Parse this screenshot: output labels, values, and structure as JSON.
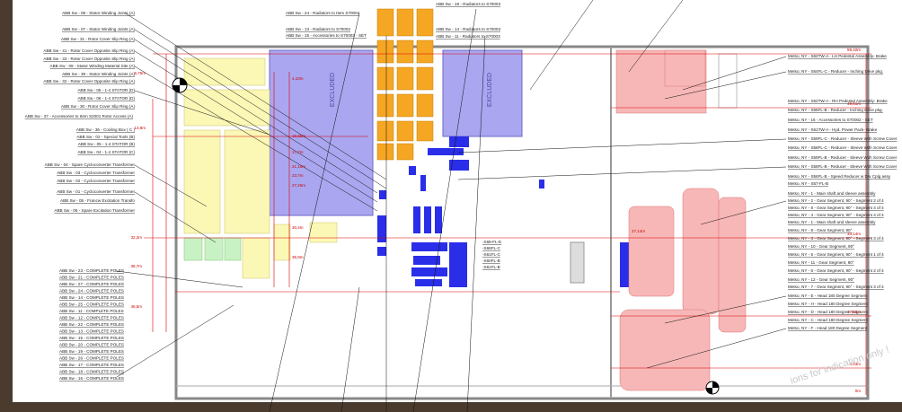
{
  "left_labels": [
    "ABB Sw - 08 - Stator Winding Joints (A)",
    "ABB Sw - 07 - Stator Winding Joints (A)",
    "ABB Sw - 31 - Rotor Cover Slip Ring (A)",
    "ABB Sw - 41 - Rotor Cover Opposite Slip Ring (A)",
    "ABB Sw - 33 - Rotor Cover Opposite Slip Ring (A)",
    "ABB Sw - 09 - Stator Winding Material Site (A)",
    "ABB Sw - 39 - Stator Winding Joints (A)",
    "ABB Sw - 32 - Rotor Cover Opposite Slip Ring (A)",
    "ABB Sw - 05 - 1-4 STATOR (D)",
    "ABB Sw - 06 - 1-4 STATOR (D)",
    "ABB Sw - 30 - Rotor Cover Slip Ring (A)",
    "ABB Sw - 37 - Accessories to Item S2001 Rotor Access (A)",
    "ABB Sw - 36 - Cooling Box ( C )",
    "ABB Sw - 02 - Special Tools (B)",
    "ABB Sw - 05 - 1-4 STATOR (B)",
    "ABB Sw - 04 - 1-4 STATOR (C)",
    "ABB Sw - 04 - Spare Cycloconverter Transformer",
    "ABB Sw - 03 - Cycloconverter Transformer",
    "ABB Sw - 02 - Cycloconverter Transformer",
    "ABB Sw - 01 - Cycloconverter Transformer",
    "ABB Sw - 05 - Francw Excitation Transfo",
    "ABB Sw - 06 - Spare Excitation Transformer"
  ],
  "poles": [
    "ABB Sw - 23 - COMPLETE POLES",
    "ABB Sw - 21 - COMPLETE POLES",
    "ABB Sw - 27 - COMPLETE POLES",
    "ABB Sw - 24 - COMPLETE POLES",
    "ABB Sw - 14 - COMPLETE POLES",
    "ABB Sw - 25 - COMPLETE POLES",
    "ABB Sw - 11 - COMPLETE POLES",
    "ABB Sw - 12 - COMPLETE POLES",
    "ABB Sw - 22 - COMPLETE POLES",
    "ABB Sw - 13 - COMPLETE POLES",
    "ABB Sw - 15 - COMPLETE POLES",
    "ABB Sw - 20 - COMPLETE POLES",
    "ABB Sw - 19 - COMPLETE POLES",
    "ABB Sw - 26 - COMPLETE POLES",
    "ABB Sw - 17 - COMPLETE POLES",
    "ABB Sw - 18 - COMPLETE POLES",
    "ABB Sw - 16 - COMPLETE POLES"
  ],
  "top_labels": [
    "ABB Sw - 24 - Radiators to Item S70004",
    "ABB Sw - 13 - Radiators to S70002",
    "ABB Sw - 15 - Accessories to S70002 - SET",
    "ABB Sw - 19 - Radiators to S70003",
    "ABB Sw - 14 - Radiators to S70003",
    "ABB Sw - 11 - Radiators to S70003"
  ],
  "right_labels": [
    "Metso, NY - S62TW-A - LH Pedestal Assembly- Brake",
    "Metso, NY - S64FL-C - Reducer - Inching Drive pkg.",
    "Metso, NY - S62TW-A - RH Pedestal Assembly- Brake",
    "Metso, NY - S65FL-B - Reducer - Inching Drive pkg.",
    "Metso, NY - 16 - Accessories to ST0002 - SET",
    "Metso, NY - S61TW-A - Hyd. Power Pack- Brake",
    "Metso, NY - S59FL-C - Reducer - Sleeve With Screw Cover",
    "Metso, NY - S58FL-C - Reducer - Sleeve With Screw Cover",
    "Metso, NY - S59FL-B - Reducer - Sleeve With Screw Cover",
    "Metso, NY - S58FL-B - Reducer - Sleeve With Screw Cover",
    "Metso, NY - S56FL-B - Speed Reducer w Drv Cplg assy",
    "Metso, NY - S57-FL-B",
    "Metso, NY - 1 - Main shaft and sleeve assembly",
    "Metso, NY - 2 - Gear Segment, 90° - Segment 2 of 4",
    "Metso, NY - 8 - Gear Segment, 90° - Segment 4 of 4",
    "Metso, NY - 4 - Gear Segment, 90° - Segment 4 of 4",
    "Metso, NY - 1 - Main shaft and sleeve assembly",
    "Metso, NY - 9 - Gear Segment, 90°",
    "Metso, NY - 3 - Gear Segment, 90° - Segment 3 of 4",
    "Metso, NY - 10 - Gear Segment, 90°",
    "Metso, NY - 5 - Gear Segment, 90° - Segment 1 of 4",
    "Metso, NY - 11 - Gear Segment, 90°",
    "Metso, NY - 6 - Gear Segment, 90° - Segment 2 of 4",
    "Metso, NY - 12 - Gear Segment, 90°",
    "Metso, NY - 7 - Gear Segment, 90° - Segment 3 of 4",
    "Metso, NY - E - Head 180 Degree Segment",
    "Metso, NY - H - Head 180 Degree Segment",
    "Metso, NY - D - Head 180 Degree Segment",
    "Metso, NY - C - Head 180 Degree Segment",
    "Metso, NY - F - Head 180 Degree Segment"
  ],
  "center_labels": [
    "-S68-FL-E",
    "-S66FL-C",
    "-S61FL-C",
    "-S60FL-B",
    "-S61FL-B"
  ],
  "right_dims": [
    "59,42m",
    "49,51m",
    "33,14m",
    "27,14m",
    "17,63m",
    "4,43m",
    "0m"
  ],
  "left_dims": [
    "4,10m",
    "15,65m",
    "17,7m",
    "21,16m",
    "23,7m",
    "27,26m",
    "30,4m",
    "35,9m"
  ],
  "far_left_dims": [
    "5,75m",
    "13,8m",
    "32,2m",
    "38,7m",
    "46,5m"
  ],
  "excluded": [
    "EXCLUDED",
    "EXCLUDED"
  ],
  "watermark": "ions for indication only !"
}
